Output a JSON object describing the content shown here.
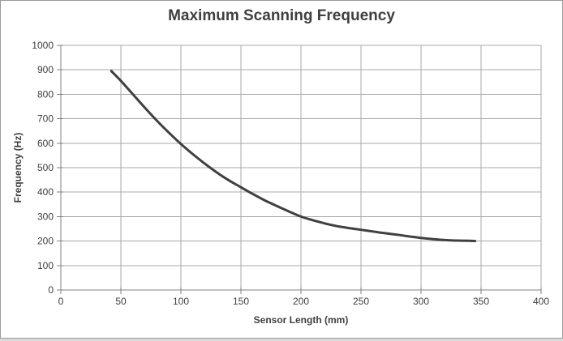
{
  "chart": {
    "title": "Maximum Scanning Frequency"
  },
  "chart_data": {
    "type": "line",
    "title": "Maximum Scanning Frequency",
    "xlabel": "Sensor Length (mm)",
    "ylabel": "Frequency (Hz)",
    "xlim": [
      0,
      400
    ],
    "ylim": [
      0,
      1000
    ],
    "x_ticks": [
      0,
      50,
      100,
      150,
      200,
      250,
      300,
      350,
      400
    ],
    "y_ticks": [
      0,
      100,
      200,
      300,
      400,
      500,
      600,
      700,
      800,
      900,
      1000
    ],
    "grid": true,
    "legend": false,
    "series": [
      {
        "name": "Maximum scanning frequency",
        "color": "#404040",
        "stroke_width": 3,
        "points": [
          [
            42,
            895
          ],
          [
            50,
            855
          ],
          [
            60,
            800
          ],
          [
            70,
            745
          ],
          [
            80,
            692
          ],
          [
            90,
            643
          ],
          [
            100,
            597
          ],
          [
            110,
            555
          ],
          [
            120,
            516
          ],
          [
            130,
            480
          ],
          [
            140,
            448
          ],
          [
            150,
            420
          ],
          [
            160,
            392
          ],
          [
            170,
            366
          ],
          [
            180,
            343
          ],
          [
            190,
            321
          ],
          [
            200,
            300
          ],
          [
            210,
            285
          ],
          [
            220,
            272
          ],
          [
            230,
            261
          ],
          [
            240,
            253
          ],
          [
            250,
            246
          ],
          [
            260,
            239
          ],
          [
            270,
            232
          ],
          [
            280,
            226
          ],
          [
            290,
            219
          ],
          [
            300,
            213
          ],
          [
            310,
            208
          ],
          [
            320,
            204
          ],
          [
            330,
            202
          ],
          [
            340,
            201
          ],
          [
            345,
            200
          ]
        ]
      }
    ],
    "colors": {
      "gridline": "#a8a8a8",
      "axis": "#808080",
      "tick": "#808080",
      "text": "#3f3f3f",
      "background": "#ffffff",
      "frame_border": "#9a9a9a"
    }
  }
}
